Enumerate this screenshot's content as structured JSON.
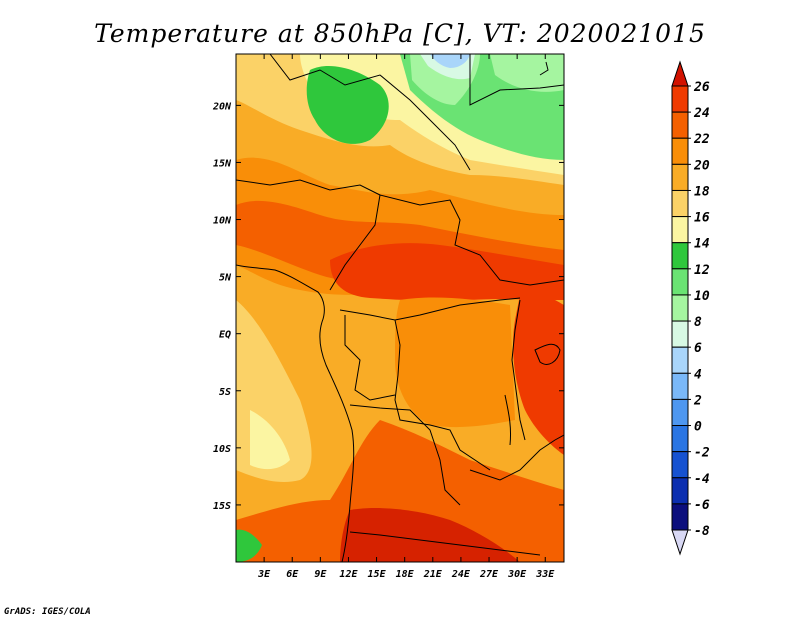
{
  "title": "Temperature at 850hPa [C], VT: 2020021015",
  "credit": "GrADS: IGES/COLA",
  "map": {
    "lon_range": [
      0,
      35
    ],
    "lat_range": [
      -20,
      24.5
    ],
    "lon_ticks": [
      {
        "lon": 3,
        "label": "3E"
      },
      {
        "lon": 6,
        "label": "6E"
      },
      {
        "lon": 9,
        "label": "9E"
      },
      {
        "lon": 12,
        "label": "12E"
      },
      {
        "lon": 15,
        "label": "15E"
      },
      {
        "lon": 18,
        "label": "18E"
      },
      {
        "lon": 21,
        "label": "21E"
      },
      {
        "lon": 24,
        "label": "24E"
      },
      {
        "lon": 27,
        "label": "27E"
      },
      {
        "lon": 30,
        "label": "30E"
      },
      {
        "lon": 33,
        "label": "33E"
      }
    ],
    "lat_ticks": [
      {
        "lat": 20,
        "label": "20N"
      },
      {
        "lat": 15,
        "label": "15N"
      },
      {
        "lat": 10,
        "label": "10N"
      },
      {
        "lat": 5,
        "label": "5N"
      },
      {
        "lat": 0,
        "label": "EQ"
      },
      {
        "lat": -5,
        "label": "5S"
      },
      {
        "lat": -10,
        "label": "10S"
      },
      {
        "lat": -15,
        "label": "15S"
      }
    ]
  },
  "colorbar": {
    "levels": [
      26,
      24,
      22,
      20,
      18,
      16,
      14,
      12,
      10,
      8,
      6,
      4,
      2,
      0,
      -2,
      -4,
      -6,
      -8
    ],
    "labels": [
      "26",
      "24",
      "22",
      "20",
      "18",
      "16",
      "14",
      "12",
      "10",
      "8",
      "6",
      "4",
      "2",
      "0",
      "-2",
      "-4",
      "-6",
      "-8"
    ],
    "colors": [
      "#d62200",
      "#ef3a00",
      "#f46000",
      "#f98e08",
      "#f9ac26",
      "#fbd267",
      "#fbf5a2",
      "#2fc73c",
      "#6ae373",
      "#a5f5a0",
      "#d8f9e4",
      "#a9d5fa",
      "#7ab8f8",
      "#4e97f0",
      "#2a75e3",
      "#1652d1",
      "#0c2fb0",
      "#0c0f7d"
    ],
    "top_tip_color": "#d21200",
    "bottom_tip_color": "#d8d8f4"
  },
  "colors": {
    "background": "#ffffff",
    "boundary": "#000000"
  }
}
